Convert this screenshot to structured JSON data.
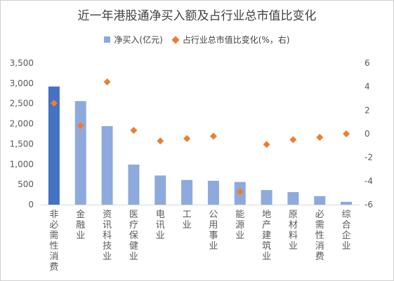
{
  "chart_data": {
    "type": "bar",
    "title": "近一年港股通净买入额及占行业总市值比变化",
    "categories": [
      "非必需性消费",
      "金融业",
      "资讯科技业",
      "医疗保健业",
      "电讯业",
      "工业",
      "公用事业",
      "能源业",
      "地产建筑业",
      "原材料业",
      "必需性消费",
      "综合企业"
    ],
    "series": [
      {
        "name": "净买入(亿元)",
        "type": "bar",
        "axis": "left",
        "color": "#8eaadc",
        "highlight_color": "#4472c4",
        "highlight_index": 0,
        "values": [
          2920,
          2560,
          1940,
          990,
          720,
          610,
          590,
          560,
          360,
          310,
          210,
          70
        ]
      },
      {
        "name": "占行业总市值比变化(%，右)",
        "type": "scatter",
        "axis": "right",
        "color": "#ed7d31",
        "values": [
          2.6,
          0.7,
          4.4,
          0.3,
          -0.6,
          -0.4,
          -0.2,
          -4.9,
          -0.9,
          -0.5,
          -0.3,
          0.0
        ]
      }
    ],
    "y_left": {
      "min": 0,
      "max": 3500,
      "ticks": [
        "0",
        "500",
        "1,000",
        "1,500",
        "2,000",
        "2,500",
        "3,000",
        "3,500"
      ]
    },
    "y_right": {
      "min": -6,
      "max": 6,
      "ticks": [
        "-6",
        "-4",
        "-2",
        "0",
        "2",
        "4",
        "6"
      ]
    },
    "grid": false,
    "legend_position": "top"
  }
}
